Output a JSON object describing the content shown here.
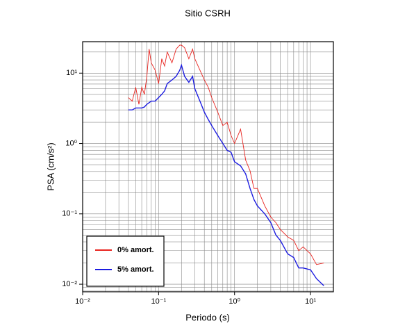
{
  "chart_data": {
    "type": "line",
    "title": "Sitio CSRH",
    "x_label": "Periodo (s)",
    "y_label": "PSA (cm/s²)",
    "x": [
      0.04,
      0.045,
      0.05,
      0.055,
      0.06,
      0.065,
      0.07,
      0.075,
      0.08,
      0.09,
      0.1,
      0.11,
      0.12,
      0.13,
      0.15,
      0.17,
      0.19,
      0.2,
      0.22,
      0.25,
      0.28,
      0.3,
      0.35,
      0.4,
      0.45,
      0.5,
      0.6,
      0.7,
      0.8,
      0.9,
      1.0,
      1.2,
      1.4,
      1.6,
      1.8,
      2.0,
      2.5,
      3,
      3.5,
      4,
      5,
      6,
      7,
      8,
      10,
      12,
      15
    ],
    "series": [
      {
        "name": "0% amort.",
        "color": "#e8231e",
        "values": [
          4.5,
          4.0,
          6.3,
          3.6,
          6.3,
          5.0,
          8.9,
          22,
          14,
          11,
          7.1,
          16,
          12.6,
          20,
          14,
          22,
          25,
          25,
          23,
          16,
          22,
          16,
          11,
          8,
          6.3,
          4.5,
          2.8,
          1.8,
          2.0,
          1.3,
          1.0,
          1.6,
          0.58,
          0.41,
          0.23,
          0.23,
          0.13,
          0.09,
          0.075,
          0.06,
          0.047,
          0.042,
          0.03,
          0.034,
          0.027,
          0.019,
          0.02
        ]
      },
      {
        "name": "5% amort.",
        "color": "#1c1ce0",
        "values": [
          3.0,
          3.0,
          3.2,
          3.2,
          3.2,
          3.3,
          3.6,
          3.8,
          4.0,
          4.0,
          4.5,
          5.0,
          5.6,
          7.1,
          8,
          9,
          11,
          13,
          9,
          7.4,
          9,
          6,
          4,
          2.8,
          2.2,
          1.8,
          1.3,
          1.0,
          0.8,
          0.75,
          0.55,
          0.48,
          0.37,
          0.23,
          0.16,
          0.13,
          0.1,
          0.075,
          0.05,
          0.042,
          0.027,
          0.024,
          0.017,
          0.017,
          0.016,
          0.012,
          0.0095
        ]
      }
    ],
    "xlim": [
      0.01,
      20
    ],
    "ylim": [
      0.0078,
      28
    ],
    "log_x": true,
    "log_y": true,
    "grid": true,
    "minor_grid": true,
    "xticks": [
      {
        "value": 0.01,
        "label": "10⁻²"
      },
      {
        "value": 0.1,
        "label": "10⁻¹"
      },
      {
        "value": 1,
        "label": "10⁰"
      },
      {
        "value": 10,
        "label": "10¹"
      }
    ],
    "yticks": [
      {
        "value": 0.01,
        "label": "10⁻²"
      },
      {
        "value": 0.1,
        "label": "10⁻¹"
      },
      {
        "value": 1,
        "label": "10⁰"
      },
      {
        "value": 10,
        "label": "10¹"
      }
    ],
    "legend": "lower left"
  }
}
